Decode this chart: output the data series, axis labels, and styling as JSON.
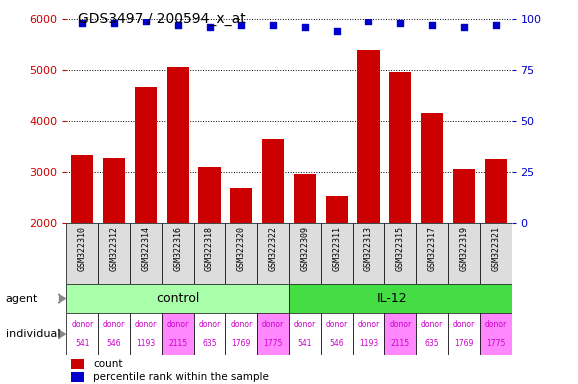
{
  "title": "GDS3497 / 200594_x_at",
  "samples": [
    "GSM322310",
    "GSM322312",
    "GSM322314",
    "GSM322316",
    "GSM322318",
    "GSM322320",
    "GSM322322",
    "GSM322309",
    "GSM322311",
    "GSM322313",
    "GSM322315",
    "GSM322317",
    "GSM322319",
    "GSM322321"
  ],
  "bar_values": [
    3340,
    3280,
    4660,
    5060,
    3100,
    2680,
    3640,
    2950,
    2530,
    5390,
    4970,
    4150,
    3060,
    3260
  ],
  "percentile_values": [
    98,
    98,
    99,
    97,
    96,
    97,
    97,
    96,
    94,
    99,
    98,
    97,
    96,
    97
  ],
  "ymin": 2000,
  "ymax": 6000,
  "yticks": [
    2000,
    3000,
    4000,
    5000,
    6000
  ],
  "right_yticks": [
    0,
    25,
    50,
    75,
    100
  ],
  "bar_color": "#cc0000",
  "dot_color": "#0000cc",
  "agent_control_label": "control",
  "agent_il12_label": "IL-12",
  "agent_control_color": "#aaffaa",
  "agent_il12_color": "#44dd44",
  "individual_labels_top": [
    "donor",
    "donor",
    "donor",
    "donor",
    "donor",
    "donor",
    "donor",
    "donor",
    "donor",
    "donor",
    "donor",
    "donor",
    "donor",
    "donor"
  ],
  "individual_labels_bottom": [
    "541",
    "546",
    "1193",
    "2115",
    "635",
    "1769",
    "1775",
    "541",
    "546",
    "1193",
    "2115",
    "635",
    "1769",
    "1775"
  ],
  "individual_colors": [
    "#ffffff",
    "#ffffff",
    "#ffffff",
    "#ff88ff",
    "#ffffff",
    "#ffffff",
    "#ff88ff",
    "#ffffff",
    "#ffffff",
    "#ffffff",
    "#ff88ff",
    "#ffffff",
    "#ffffff",
    "#ff88ff"
  ],
  "legend_count_color": "#cc0000",
  "legend_dot_color": "#0000cc",
  "legend_count_label": "count",
  "legend_dot_label": "percentile rank within the sample",
  "sample_bg_color": "#dddddd",
  "n_control": 7,
  "n_il12": 7
}
